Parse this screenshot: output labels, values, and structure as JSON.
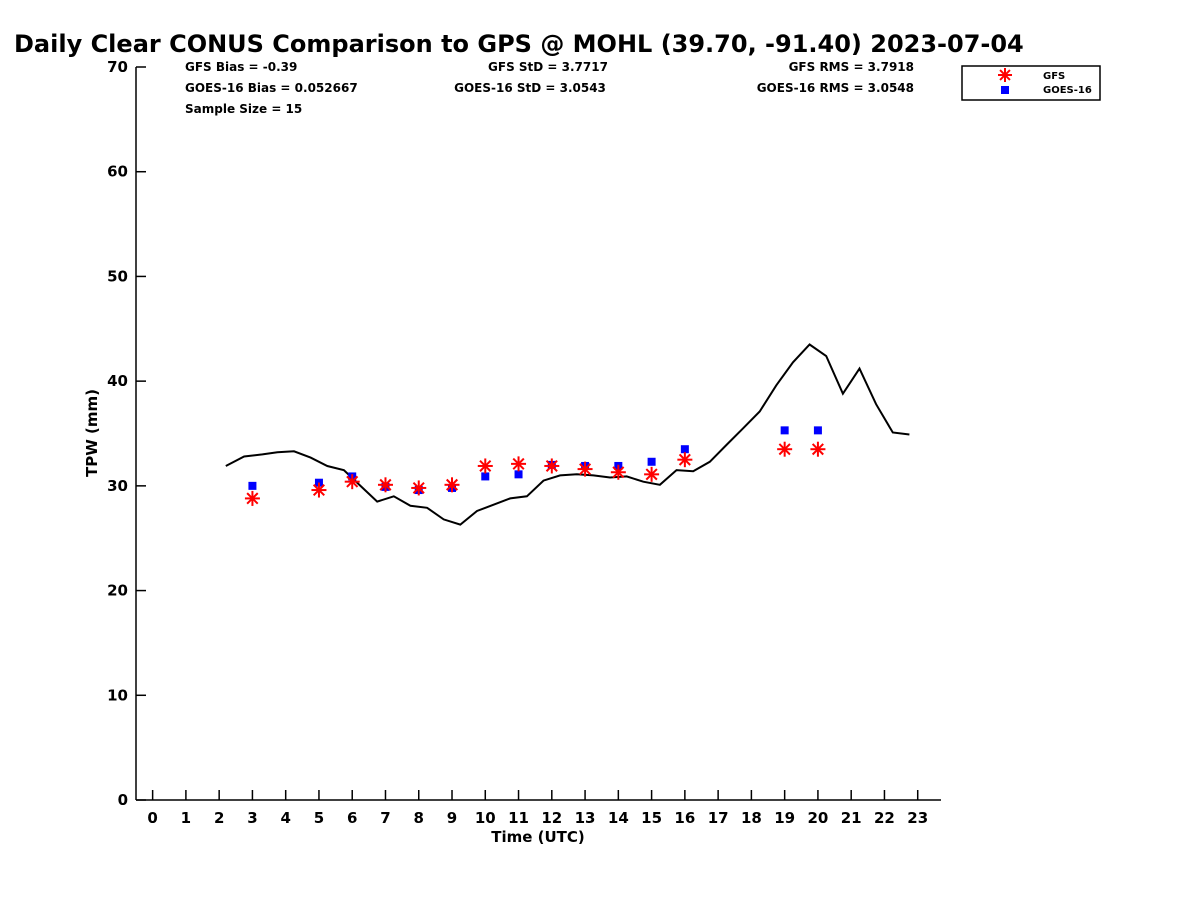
{
  "title": "Daily Clear CONUS Comparison to GPS @ MOHL (39.70, -91.40) 2023-07-04",
  "stats": {
    "gfs_bias": "GFS Bias = -0.39",
    "gfs_std": "GFS StD = 3.7717",
    "gfs_rms": "GFS RMS = 3.7918",
    "goes_bias": "GOES-16 Bias = 0.052667",
    "goes_std": "GOES-16 StD = 3.0543",
    "goes_rms": "GOES-16 RMS = 3.0548",
    "sample_size": "Sample Size = 15"
  },
  "legend": {
    "gfs": "GFS",
    "goes": "GOES-16"
  },
  "colors": {
    "gfs": "#ff0000",
    "goes": "#0000ff",
    "gps_line": "#000000"
  },
  "chart_data": {
    "type": "line",
    "xlabel": "Time (UTC)",
    "ylabel": "TPW (mm)",
    "xlim": [
      -0.5,
      23.7
    ],
    "ylim": [
      0,
      70
    ],
    "xticks": [
      0,
      1,
      2,
      3,
      4,
      5,
      6,
      7,
      8,
      9,
      10,
      11,
      12,
      13,
      14,
      15,
      16,
      17,
      18,
      19,
      20,
      21,
      22,
      23
    ],
    "yticks": [
      0,
      10,
      20,
      30,
      40,
      50,
      60,
      70
    ],
    "grid": false,
    "legend_position": "top-right",
    "series": [
      {
        "kind": "line",
        "points": [
          [
            2.2,
            31.9
          ],
          [
            2.75,
            32.8
          ],
          [
            3.3,
            33.0
          ],
          [
            3.75,
            33.2
          ],
          [
            4.25,
            33.3
          ],
          [
            4.75,
            32.7
          ],
          [
            5.25,
            31.9
          ],
          [
            5.75,
            31.5
          ],
          [
            6.25,
            30.0
          ],
          [
            6.75,
            28.5
          ],
          [
            7.25,
            29.0
          ],
          [
            7.75,
            28.1
          ],
          [
            8.25,
            27.9
          ],
          [
            8.75,
            26.8
          ],
          [
            9.25,
            26.3
          ],
          [
            9.75,
            27.6
          ],
          [
            10.25,
            28.2
          ],
          [
            10.75,
            28.8
          ],
          [
            11.25,
            29.0
          ],
          [
            11.75,
            30.5
          ],
          [
            12.25,
            31.0
          ],
          [
            12.75,
            31.1
          ],
          [
            13.25,
            31.0
          ],
          [
            13.75,
            30.8
          ],
          [
            14.25,
            30.9
          ],
          [
            14.75,
            30.4
          ],
          [
            15.25,
            30.1
          ],
          [
            15.75,
            31.5
          ],
          [
            16.25,
            31.4
          ],
          [
            16.75,
            32.3
          ],
          [
            17.25,
            33.9
          ],
          [
            17.75,
            35.5
          ],
          [
            18.25,
            37.1
          ],
          [
            18.75,
            39.6
          ],
          [
            19.25,
            41.8
          ],
          [
            19.75,
            43.5
          ],
          [
            20.25,
            42.4
          ],
          [
            20.75,
            38.8
          ],
          [
            21.25,
            41.2
          ],
          [
            21.75,
            37.8
          ],
          [
            22.25,
            35.1
          ],
          [
            22.75,
            34.9
          ]
        ]
      },
      {
        "name": "GFS",
        "kind": "scatter",
        "marker": "asterisk",
        "x": [
          3,
          5,
          6,
          7,
          8,
          9,
          10,
          11,
          12,
          13,
          14,
          15,
          16,
          19,
          20
        ],
        "y": [
          28.8,
          29.6,
          30.4,
          30.1,
          29.8,
          30.1,
          31.9,
          32.1,
          31.9,
          31.6,
          31.3,
          31.1,
          32.5,
          33.5,
          33.5
        ]
      },
      {
        "name": "GOES-16",
        "kind": "scatter",
        "marker": "square",
        "x": [
          3,
          5,
          6,
          7,
          8,
          9,
          10,
          11,
          12,
          13,
          14,
          15,
          16,
          19,
          20
        ],
        "y": [
          30.0,
          30.3,
          30.9,
          29.9,
          29.6,
          29.8,
          30.9,
          31.1,
          32.0,
          31.9,
          31.9,
          32.3,
          33.5,
          35.3,
          35.3
        ]
      }
    ]
  }
}
